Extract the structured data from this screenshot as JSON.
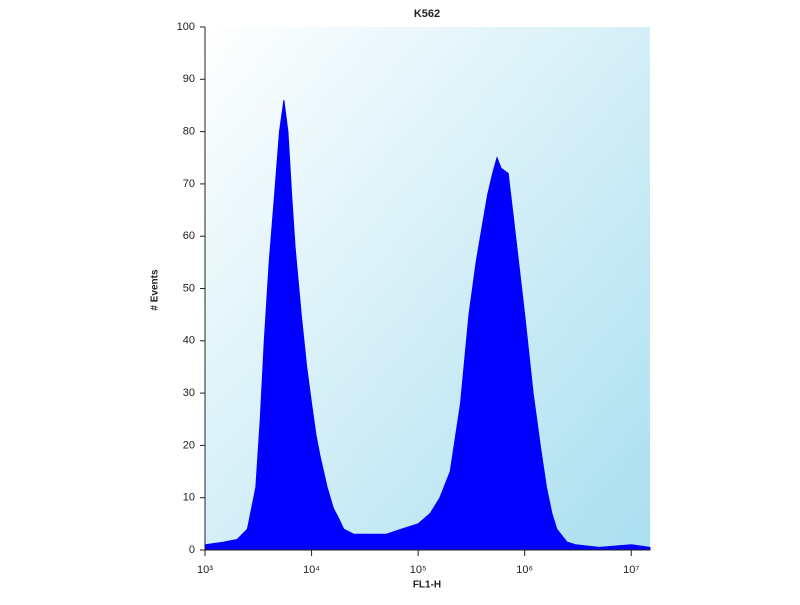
{
  "chart_data": {
    "type": "area",
    "title": "K562",
    "x_label": "FL1-H",
    "y_label": "# Events",
    "x_scale": "log",
    "color": "#0000ff",
    "x": [
      1000,
      1500,
      2000,
      2500,
      3000,
      3300,
      3600,
      4000,
      4500,
      5000,
      5500,
      6000,
      6500,
      7000,
      8000,
      9000,
      10000,
      11000,
      12000,
      14000,
      16000,
      18000,
      20000,
      25000,
      30000,
      40000,
      50000,
      70000,
      100000,
      130000,
      160000,
      200000,
      250000,
      300000,
      350000,
      400000,
      450000,
      500000,
      550000,
      600000,
      700000,
      800000,
      1000000,
      1200000,
      1400000,
      1600000,
      1800000,
      2000000,
      2500000,
      3000000,
      5000000,
      10000000,
      15000000
    ],
    "values": [
      1,
      1.5,
      2,
      4,
      12,
      25,
      40,
      55,
      68,
      80,
      86,
      80,
      68,
      58,
      45,
      35,
      28,
      22,
      18,
      12,
      8,
      6,
      4,
      3,
      3,
      3,
      3,
      4,
      5,
      7,
      10,
      15,
      28,
      45,
      55,
      62,
      68,
      72,
      75,
      73,
      72,
      62,
      45,
      30,
      20,
      12,
      7,
      4,
      1.5,
      1,
      0.5,
      1,
      0.5
    ],
    "xlim": [
      1000,
      15000000
    ],
    "ylim": [
      0,
      100
    ],
    "xticks": [
      {
        "value": 1000,
        "label": "10³"
      },
      {
        "value": 10000,
        "label": "10⁴"
      },
      {
        "value": 100000,
        "label": "10⁵"
      },
      {
        "value": 1000000,
        "label": "10⁶"
      },
      {
        "value": 10000000,
        "label": "10⁷"
      }
    ],
    "yticks": [
      0,
      10,
      20,
      30,
      40,
      50,
      60,
      70,
      80,
      90,
      100
    ]
  }
}
